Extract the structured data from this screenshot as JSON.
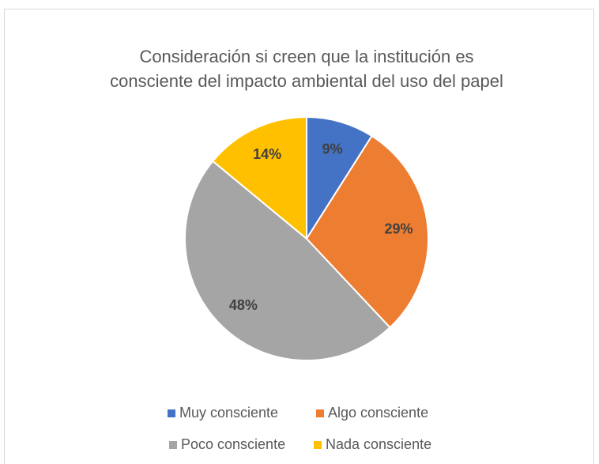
{
  "chart_data": {
    "type": "pie",
    "title": [
      "Consideración si creen que la institución es",
      "consciente del impacto ambiental del uso del papel"
    ],
    "categories": [
      "Muy consciente",
      "Algo consciente",
      "Poco consciente",
      "Nada consciente"
    ],
    "values": [
      9,
      29,
      48,
      14
    ],
    "value_labels": [
      "9%",
      "29%",
      "48%",
      "14%"
    ],
    "colors": [
      "#4472c4",
      "#ed7d31",
      "#a5a5a5",
      "#ffc000"
    ],
    "legend": "bottom"
  }
}
